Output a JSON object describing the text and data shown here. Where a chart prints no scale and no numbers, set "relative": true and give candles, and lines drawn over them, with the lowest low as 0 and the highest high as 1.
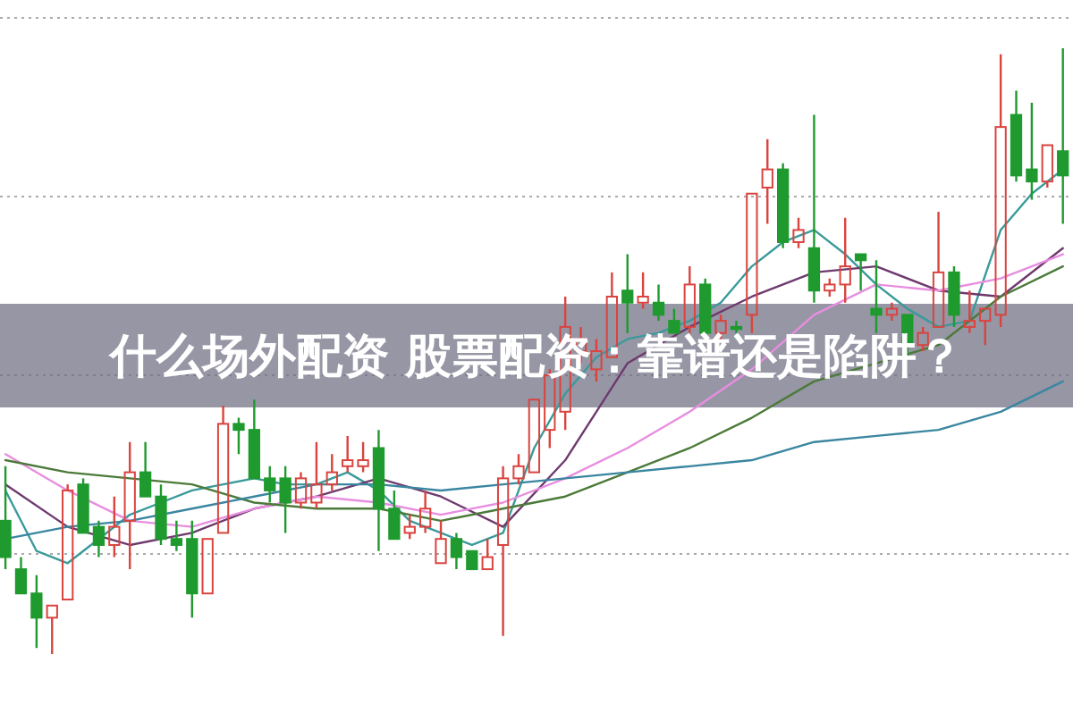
{
  "chart_data": {
    "type": "candlestick",
    "title": "什么场外配资 股票配资：靠谱还是陷阱？",
    "relative": true,
    "grid": "y",
    "categories": [
      null,
      null,
      null,
      null,
      null,
      null,
      null,
      null,
      null,
      null,
      null,
      null,
      null,
      null,
      null,
      null,
      null,
      null,
      null,
      null,
      null,
      null,
      null,
      null,
      null,
      null,
      null,
      null,
      null,
      null,
      null,
      null,
      null,
      null,
      null,
      null,
      null,
      null,
      null,
      null,
      null,
      null,
      null,
      null,
      null,
      null,
      null,
      null,
      null,
      null,
      null,
      null,
      null,
      null,
      null,
      null,
      null,
      null,
      null,
      null,
      null,
      null,
      null,
      null,
      null,
      null,
      null,
      null,
      null
    ],
    "ohlc": [
      [
        0.22,
        0.31,
        0.14,
        0.16
      ],
      [
        0.14,
        0.16,
        0.1,
        0.1
      ],
      [
        0.1,
        0.13,
        0.01,
        0.06
      ],
      [
        0.06,
        0.08,
        0,
        0.08
      ],
      [
        0.09,
        0.28,
        0.09,
        0.27
      ],
      [
        0.28,
        0.29,
        0.2,
        0.2
      ],
      [
        0.21,
        0.22,
        0.16,
        0.18
      ],
      [
        0.18,
        0.26,
        0.16,
        0.21
      ],
      [
        0.22,
        0.35,
        0.14,
        0.3
      ],
      [
        0.3,
        0.35,
        0.26,
        0.26
      ],
      [
        0.26,
        0.28,
        0.18,
        0.19
      ],
      [
        0.19,
        0.22,
        0.17,
        0.18
      ],
      [
        0.19,
        0.22,
        0.06,
        0.1
      ],
      [
        0.1,
        0.19,
        0.1,
        0.19
      ],
      [
        0.2,
        0.41,
        0.2,
        0.38
      ],
      [
        0.38,
        0.39,
        0.33,
        0.37
      ],
      [
        0.37,
        0.42,
        0.29,
        0.29
      ],
      [
        0.29,
        0.31,
        0.25,
        0.27
      ],
      [
        0.29,
        0.31,
        0.2,
        0.25
      ],
      [
        0.25,
        0.3,
        0.24,
        0.29
      ],
      [
        0.25,
        0.35,
        0.24,
        0.28
      ],
      [
        0.28,
        0.33,
        0.27,
        0.3
      ],
      [
        0.31,
        0.36,
        0.3,
        0.32
      ],
      [
        0.31,
        0.35,
        0.3,
        0.32
      ],
      [
        0.34,
        0.37,
        0.17,
        0.24
      ],
      [
        0.24,
        0.27,
        0.19,
        0.19
      ],
      [
        0.2,
        0.23,
        0.19,
        0.21
      ],
      [
        0.21,
        0.27,
        0.2,
        0.24
      ],
      [
        0.15,
        0.22,
        0.15,
        0.19
      ],
      [
        0.19,
        0.2,
        0.14,
        0.16
      ],
      [
        0.17,
        0.17,
        0.14,
        0.14
      ],
      [
        0.14,
        0.19,
        0.14,
        0.16
      ],
      [
        0.18,
        0.31,
        0.03,
        0.29
      ],
      [
        0.29,
        0.33,
        0.28,
        0.31
      ],
      [
        0.3,
        0.42,
        0.3,
        0.42
      ],
      [
        0.37,
        0.47,
        0.34,
        0.46
      ],
      [
        0.4,
        0.59,
        0.37,
        0.54
      ],
      [
        0.5,
        0.54,
        0.48,
        0.52
      ],
      [
        0.47,
        0.52,
        0.45,
        0.5
      ],
      [
        0.49,
        0.63,
        0.49,
        0.59
      ],
      [
        0.6,
        0.66,
        0.53,
        0.58
      ],
      [
        0.58,
        0.63,
        0.57,
        0.59
      ],
      [
        0.58,
        0.61,
        0.55,
        0.56
      ],
      [
        0.55,
        0.57,
        0.53,
        0.53
      ],
      [
        0.54,
        0.64,
        0.53,
        0.61
      ],
      [
        0.61,
        0.62,
        0.52,
        0.53
      ],
      [
        0.53,
        0.56,
        0.52,
        0.55
      ],
      [
        0.54,
        0.55,
        0.53,
        0.54
      ],
      [
        0.56,
        0.76,
        0.53,
        0.76
      ],
      [
        0.77,
        0.85,
        0.71,
        0.8
      ],
      [
        0.8,
        0.81,
        0.67,
        0.68
      ],
      [
        0.68,
        0.72,
        0.67,
        0.7
      ],
      [
        0.67,
        0.89,
        0.58,
        0.6
      ],
      [
        0.6,
        0.62,
        0.59,
        0.61
      ],
      [
        0.61,
        0.72,
        0.58,
        0.64
      ],
      [
        0.66,
        0.66,
        0.6,
        0.65
      ],
      [
        0.57,
        0.65,
        0.53,
        0.56
      ],
      [
        0.56,
        0.58,
        0.55,
        0.57
      ],
      [
        0.56,
        0.56,
        0.49,
        0.51
      ],
      [
        0.51,
        0.54,
        0.5,
        0.53
      ],
      [
        0.54,
        0.73,
        0.54,
        0.63
      ],
      [
        0.63,
        0.64,
        0.54,
        0.56
      ],
      [
        0.54,
        0.6,
        0.53,
        0.55
      ],
      [
        0.55,
        0.57,
        0.51,
        0.57
      ],
      [
        0.56,
        0.99,
        0.54,
        0.87
      ],
      [
        0.89,
        0.93,
        0.78,
        0.79
      ],
      [
        0.8,
        0.91,
        0.75,
        0.78
      ],
      [
        0.78,
        0.84,
        0.77,
        0.84
      ],
      [
        0.83,
        1,
        0.71,
        0.79
      ]
    ],
    "colors": [
      "#1f9a2e",
      "#1f9a2e",
      "#1f9a2e",
      "#d9443f",
      "#d9443f",
      "#1f9a2e",
      "#1f9a2e",
      "#d9443f",
      "#d9443f",
      "#1f9a2e",
      "#1f9a2e",
      "#1f9a2e",
      "#1f9a2e",
      "#d9443f",
      "#d9443f",
      "#1f9a2e",
      "#1f9a2e",
      "#1f9a2e",
      "#1f9a2e",
      "#d9443f",
      "#d9443f",
      "#d9443f",
      "#d9443f",
      "#d9443f",
      "#1f9a2e",
      "#1f9a2e",
      "#d9443f",
      "#d9443f",
      "#d9443f",
      "#1f9a2e",
      "#1f9a2e",
      "#d9443f",
      "#d9443f",
      "#d9443f",
      "#d9443f",
      "#d9443f",
      "#d9443f",
      "#d9443f",
      "#d9443f",
      "#d9443f",
      "#1f9a2e",
      "#d9443f",
      "#1f9a2e",
      "#1f9a2e",
      "#d9443f",
      "#1f9a2e",
      "#d9443f",
      "#1f9a2e",
      "#d9443f",
      "#d9443f",
      "#1f9a2e",
      "#d9443f",
      "#1f9a2e",
      "#d9443f",
      "#d9443f",
      "#1f9a2e",
      "#1f9a2e",
      "#d9443f",
      "#1f9a2e",
      "#d9443f",
      "#d9443f",
      "#1f9a2e",
      "#d9443f",
      "#d9443f",
      "#d9443f",
      "#1f9a2e",
      "#1f9a2e",
      "#d9443f",
      "#1f9a2e"
    ],
    "series": [
      {
        "type": "line",
        "color": "#3a9a9a",
        "values": [
          0.27,
          null,
          0.17,
          null,
          0.15,
          null,
          0.19,
          null,
          0.23,
          null,
          0.25,
          null,
          0.27,
          null,
          0.28,
          null,
          0.29,
          null,
          0.28,
          null,
          0.28,
          null,
          0.3,
          null,
          0.27,
          null,
          0.22,
          null,
          0.2,
          null,
          0.18,
          null,
          0.2,
          null,
          0.34,
          null,
          0.43,
          null,
          0.49,
          null,
          0.52,
          null,
          0.53,
          null,
          0.55,
          null,
          0.58,
          null,
          0.64,
          null,
          0.68,
          null,
          0.7,
          null,
          0.66,
          null,
          0.61,
          null,
          0.57,
          null,
          0.54,
          null,
          0.55,
          null,
          0.7,
          null,
          0.76,
          null,
          0.8
        ]
      },
      {
        "type": "line",
        "color": "#6e3a6e",
        "values": [
          0.28,
          null,
          null,
          null,
          0.21,
          null,
          null,
          null,
          0.18,
          null,
          null,
          null,
          0.2,
          null,
          null,
          null,
          0.24,
          null,
          null,
          null,
          0.26,
          null,
          null,
          null,
          0.29,
          null,
          null,
          null,
          0.26,
          null,
          null,
          null,
          0.21,
          null,
          null,
          null,
          0.32,
          null,
          null,
          null,
          0.48,
          null,
          null,
          null,
          0.54,
          null,
          null,
          null,
          0.59,
          null,
          null,
          null,
          0.63,
          null,
          null,
          null,
          0.64,
          null,
          null,
          null,
          0.6,
          null,
          null,
          null,
          0.59,
          null,
          null,
          null,
          0.67
        ]
      },
      {
        "type": "line",
        "color": "#e88ee0",
        "values": [
          0.33,
          null,
          null,
          null,
          0.27,
          null,
          null,
          null,
          0.22,
          null,
          null,
          null,
          0.21,
          null,
          null,
          null,
          0.24,
          null,
          null,
          null,
          0.26,
          null,
          null,
          null,
          0.25,
          null,
          null,
          null,
          0.23,
          null,
          null,
          null,
          0.25,
          null,
          null,
          null,
          0.29,
          null,
          null,
          null,
          0.34,
          null,
          null,
          null,
          0.4,
          null,
          null,
          null,
          0.47,
          null,
          null,
          null,
          0.56,
          null,
          null,
          null,
          0.61,
          null,
          null,
          null,
          0.6,
          null,
          null,
          null,
          0.62,
          null,
          null,
          null,
          0.66
        ]
      },
      {
        "type": "line",
        "color": "#4c7a3a",
        "values": [
          0.32,
          null,
          null,
          null,
          0.3,
          null,
          null,
          null,
          0.29,
          null,
          null,
          null,
          0.28,
          null,
          null,
          null,
          0.25,
          null,
          null,
          null,
          0.24,
          null,
          null,
          null,
          0.24,
          null,
          null,
          null,
          0.22,
          null,
          null,
          null,
          0.24,
          null,
          null,
          null,
          0.26,
          null,
          null,
          null,
          0.3,
          null,
          null,
          null,
          0.34,
          null,
          null,
          null,
          0.39,
          null,
          null,
          null,
          0.45,
          null,
          null,
          null,
          0.48,
          null,
          null,
          null,
          0.51,
          null,
          null,
          null,
          0.59,
          null,
          null,
          null,
          0.64
        ]
      },
      {
        "type": "line",
        "color": "#3a86a0",
        "values": [
          0.19,
          null,
          null,
          null,
          0.21,
          null,
          null,
          null,
          0.22,
          null,
          null,
          null,
          0.24,
          null,
          null,
          null,
          0.26,
          null,
          null,
          null,
          0.28,
          null,
          null,
          null,
          0.28,
          null,
          null,
          null,
          0.27,
          null,
          null,
          null,
          0.28,
          null,
          null,
          null,
          0.29,
          null,
          null,
          null,
          0.3,
          null,
          null,
          null,
          0.31,
          null,
          null,
          null,
          0.32,
          null,
          null,
          null,
          0.35,
          null,
          null,
          null,
          0.36,
          null,
          null,
          null,
          0.37,
          null,
          null,
          null,
          0.4,
          null,
          null,
          null,
          0.45
        ]
      }
    ]
  }
}
